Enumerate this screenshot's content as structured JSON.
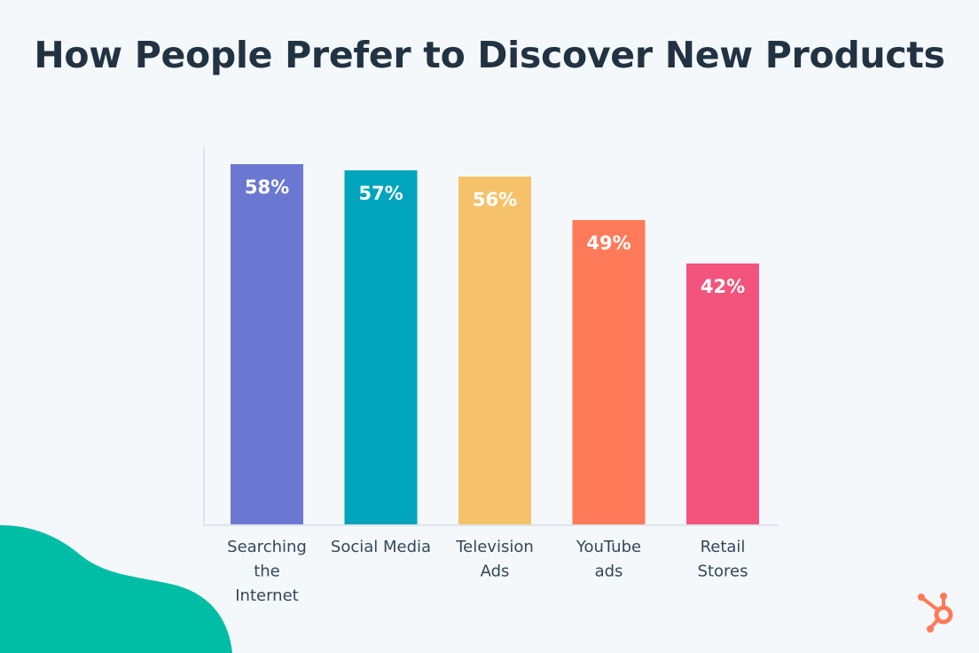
{
  "title": "How People Prefer to Discover New Products",
  "brand": {
    "logo_icon": "hubspot-sprocket-icon",
    "logo_color": "#ff7a59",
    "blob_color": "#00bda5"
  },
  "chart_data": {
    "type": "bar",
    "title": "How People Prefer to Discover New Products",
    "xlabel": "",
    "ylabel": "",
    "ylim": [
      0,
      62
    ],
    "grid": false,
    "categories": [
      [
        "Searching",
        "the",
        "Internet"
      ],
      [
        "Social Media"
      ],
      [
        "Television",
        "Ads"
      ],
      [
        "YouTube",
        "ads"
      ],
      [
        "Retail",
        "Stores"
      ]
    ],
    "values": [
      58,
      57,
      56,
      49,
      42
    ],
    "labels": [
      "58%",
      "57%",
      "56%",
      "49%",
      "42%"
    ],
    "colors": [
      "#6a78d1",
      "#00a4bd",
      "#f5c26b",
      "#ff7a59",
      "#f2547d"
    ]
  }
}
